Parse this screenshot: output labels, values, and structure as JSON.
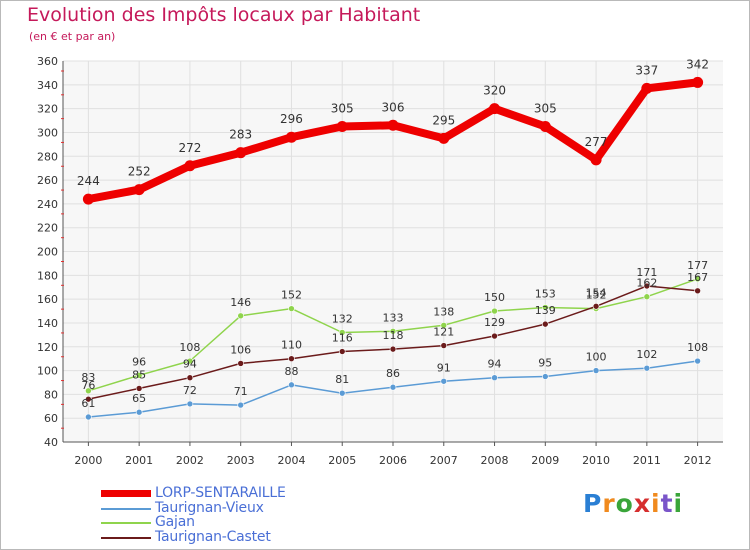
{
  "chart_data": {
    "type": "line",
    "title": "Evolution des Impôts locaux par Habitant",
    "subtitle": "(en € et par an)",
    "xlabel": "",
    "ylabel": "",
    "x": [
      "2000",
      "2001",
      "2002",
      "2003",
      "2004",
      "2005",
      "2006",
      "2007",
      "2008",
      "2009",
      "2010",
      "2011",
      "2012"
    ],
    "ylim": [
      40,
      360
    ],
    "yticks": [
      40,
      60,
      80,
      100,
      120,
      140,
      160,
      180,
      200,
      220,
      240,
      260,
      280,
      300,
      320,
      340,
      360
    ],
    "grid": true,
    "legend_position": "bottom-left",
    "series": [
      {
        "name": "LORP-SENTARAILLE",
        "color": "#ee0000",
        "values": [
          244,
          252,
          272,
          283,
          296,
          305,
          306,
          295,
          320,
          305,
          277,
          337,
          342
        ]
      },
      {
        "name": "Taurignan-Vieux",
        "color": "#5b9bd5",
        "values": [
          61,
          65,
          72,
          71,
          88,
          81,
          86,
          91,
          94,
          95,
          100,
          102,
          108
        ]
      },
      {
        "name": "Gajan",
        "color": "#8fd44c",
        "values": [
          83,
          96,
          108,
          146,
          152,
          132,
          133,
          138,
          150,
          153,
          152,
          162,
          177
        ]
      },
      {
        "name": "Taurignan-Castet",
        "color": "#6b1b1b",
        "values": [
          76,
          85,
          94,
          106,
          110,
          116,
          118,
          121,
          129,
          139,
          154,
          171,
          167
        ]
      }
    ]
  },
  "logo": {
    "letters": [
      "P",
      "r",
      "o",
      "x",
      "i",
      "t",
      "i"
    ],
    "colors": [
      "#2a7fd4",
      "#f08a1e",
      "#3aa53a",
      "#d62e2e",
      "#f08a1e",
      "#7a55c9",
      "#3aa53a"
    ]
  }
}
